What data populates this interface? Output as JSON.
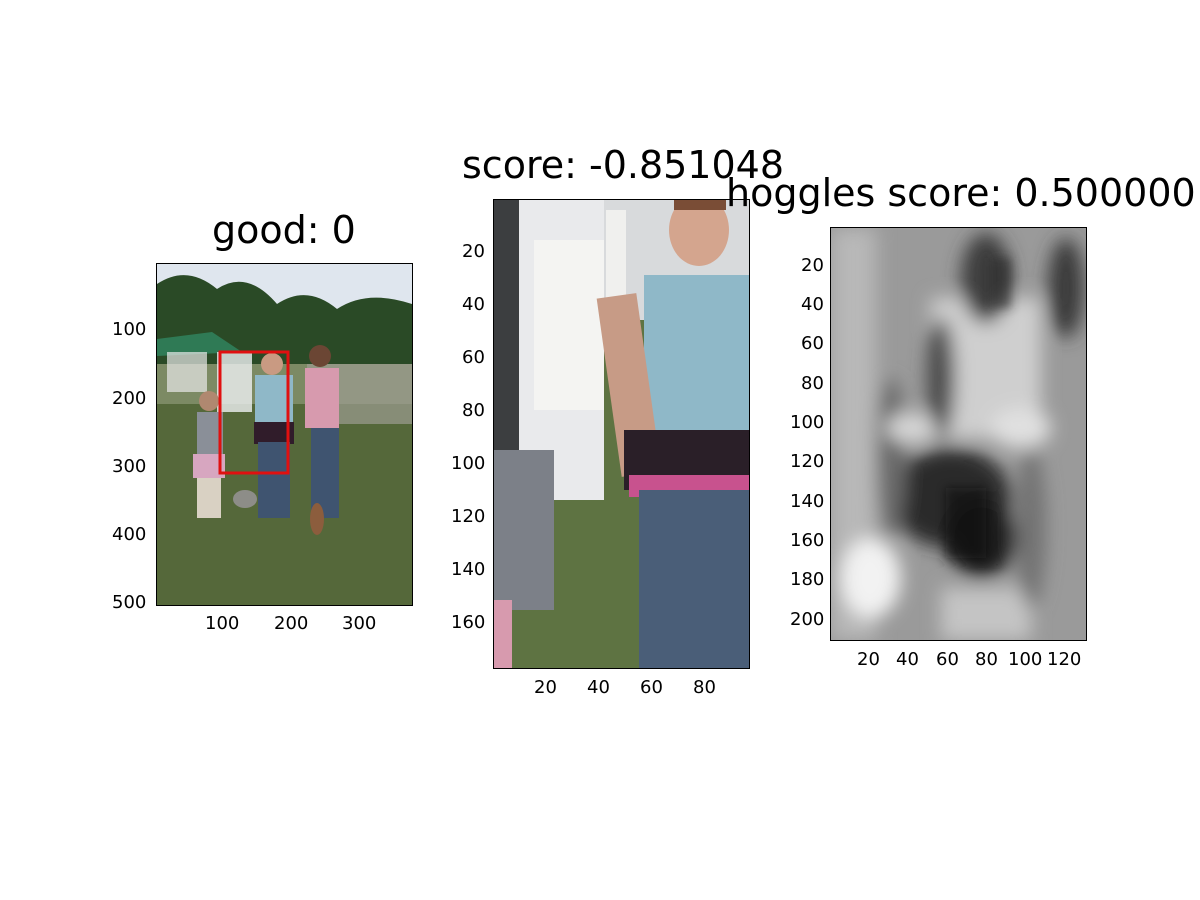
{
  "figure": {
    "panels": [
      {
        "title": "good: 0",
        "x_ticks": [
          "100",
          "200",
          "300"
        ],
        "y_ticks": [
          "100",
          "200",
          "300",
          "400",
          "500"
        ],
        "content": "photo of people walking dogs on grass with red detection box"
      },
      {
        "title": "score: -0.851048",
        "x_ticks": [
          "20",
          "40",
          "60",
          "80"
        ],
        "y_ticks": [
          "20",
          "40",
          "60",
          "80",
          "100",
          "120",
          "140",
          "160"
        ],
        "content": "cropped photo of woman in light blue shirt"
      },
      {
        "title": "hoggles score: 0.500000",
        "x_ticks": [
          "20",
          "40",
          "60",
          "80",
          "100",
          "120"
        ],
        "y_ticks": [
          "20",
          "40",
          "60",
          "80",
          "100",
          "120",
          "140",
          "160",
          "180",
          "200"
        ],
        "content": "grayscale HOG inversion visualization"
      }
    ]
  },
  "colors": {
    "detection_box": "#e01010",
    "sky": "#dfe6ee",
    "trees": "#2a4a26",
    "grass": "#55683a",
    "tent_green": "#2f7a55",
    "shirt_blue": "#8fb8c8",
    "jeans": "#3f5470",
    "pink_shirt": "#d79aae"
  }
}
